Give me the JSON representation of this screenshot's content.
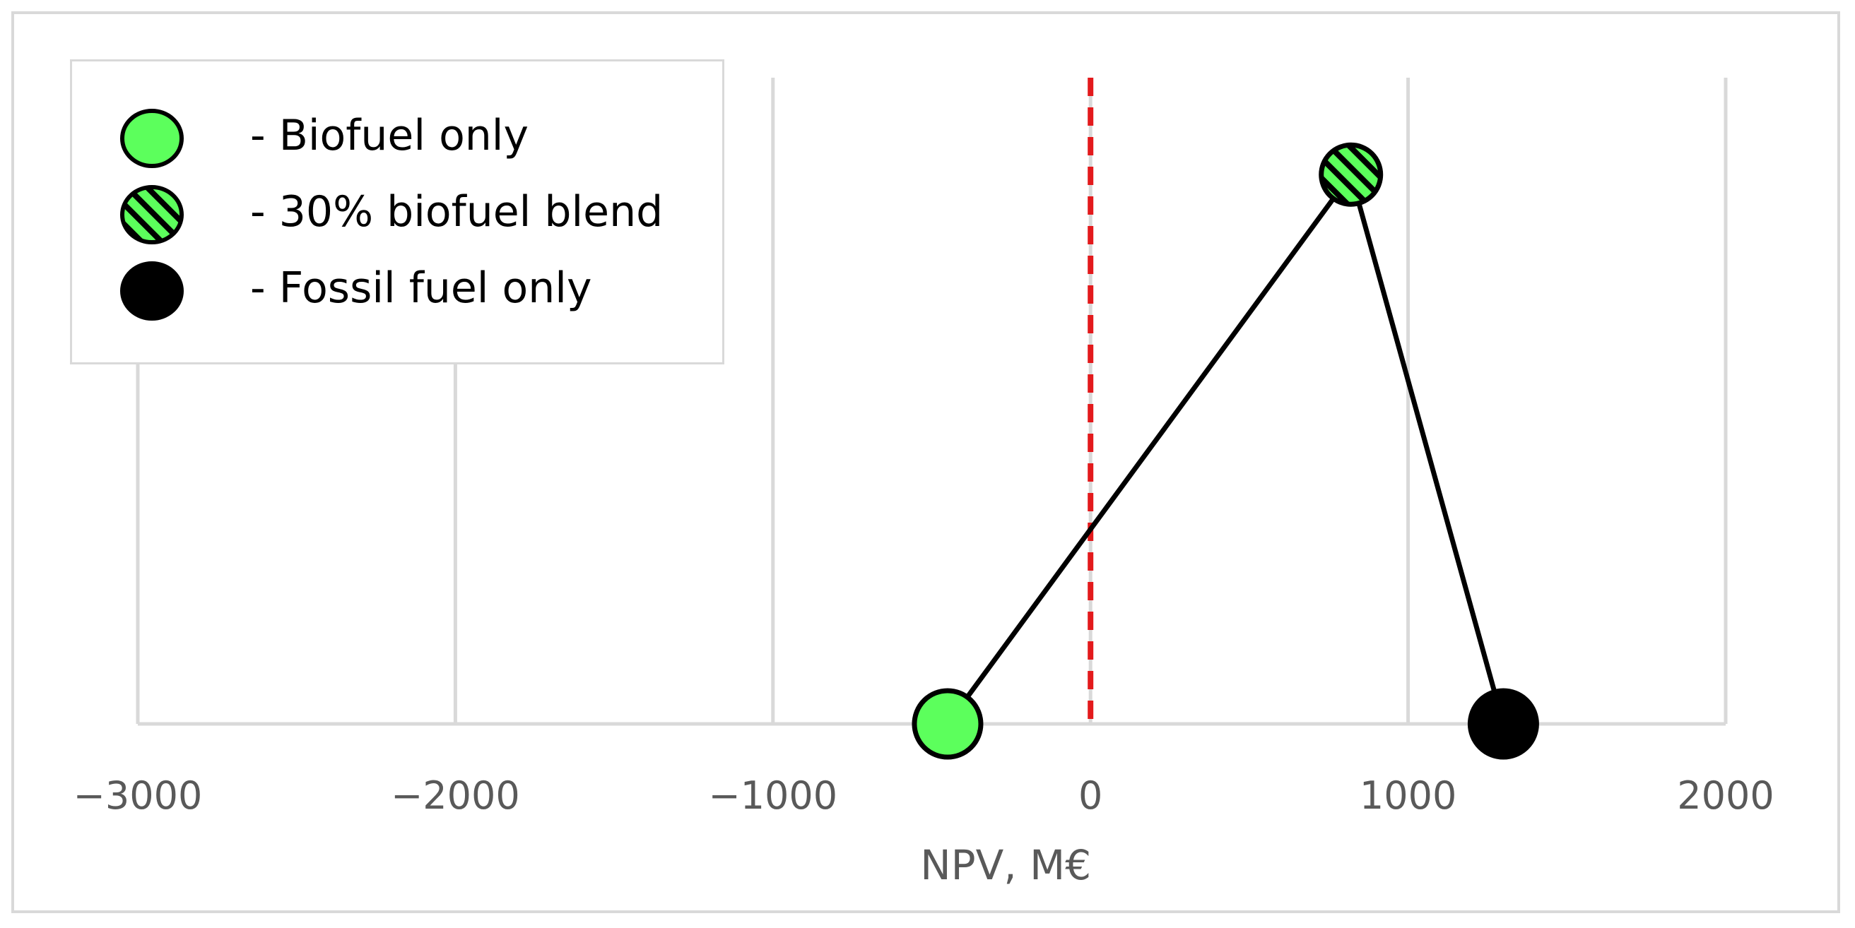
{
  "chart_data": {
    "type": "scatter",
    "xlabel": "NPV, M€",
    "ylabel": "",
    "xlim": [
      -3000,
      2000
    ],
    "ylim": [
      0,
      1
    ],
    "x_ticks": [
      -3000,
      -2000,
      -1000,
      0,
      1000,
      2000
    ],
    "x_tick_labels": [
      "−3000",
      "−2000",
      "−1000",
      "0",
      "1000",
      "2000"
    ],
    "grid": "vertical",
    "legend_position": "top-left",
    "reference_line": {
      "x": 0,
      "style": "dashed",
      "color": "#e31a1c"
    },
    "connector_order": [
      "Biofuel only",
      "30% biofuel blend",
      "Fossil fuel only"
    ],
    "series": [
      {
        "name": "Biofuel only",
        "x": -450,
        "y": 0,
        "marker": "solid",
        "color": "#5cff5c"
      },
      {
        "name": "30% biofuel blend",
        "x": 820,
        "y": 0.85,
        "marker": "hatched",
        "color": "#5cff5c"
      },
      {
        "name": "Fossil fuel only",
        "x": 1300,
        "y": 0,
        "marker": "solid",
        "color": "#000000"
      }
    ]
  },
  "legend": {
    "items": [
      {
        "label": "- Biofuel only",
        "marker": "solid-green"
      },
      {
        "label": "- 30% biofuel blend",
        "marker": "hatched-green"
      },
      {
        "label": "- Fossil fuel only",
        "marker": "solid-black"
      }
    ]
  },
  "colors": {
    "grid": "#d9d9d9",
    "axis_text": "#595959",
    "green": "#5cff5c",
    "black": "#000000",
    "reference": "#e31a1c"
  }
}
